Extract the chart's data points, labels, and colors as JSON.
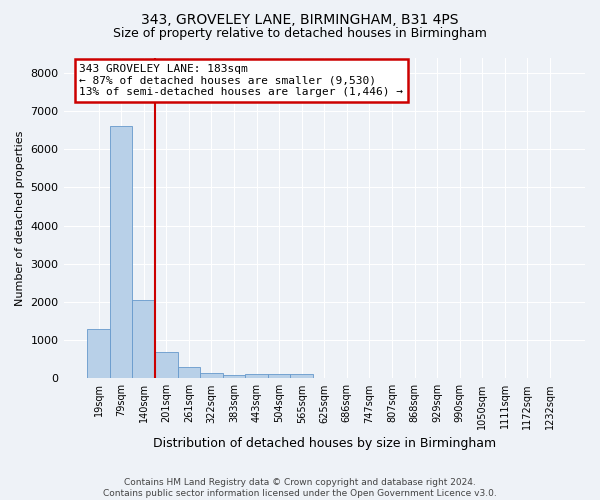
{
  "title": "343, GROVELEY LANE, BIRMINGHAM, B31 4PS",
  "subtitle": "Size of property relative to detached houses in Birmingham",
  "xlabel": "Distribution of detached houses by size in Birmingham",
  "ylabel": "Number of detached properties",
  "footer_line1": "Contains HM Land Registry data © Crown copyright and database right 2024.",
  "footer_line2": "Contains public sector information licensed under the Open Government Licence v3.0.",
  "bin_labels": [
    "19sqm",
    "79sqm",
    "140sqm",
    "201sqm",
    "261sqm",
    "322sqm",
    "383sqm",
    "443sqm",
    "504sqm",
    "565sqm",
    "625sqm",
    "686sqm",
    "747sqm",
    "807sqm",
    "868sqm",
    "929sqm",
    "990sqm",
    "1050sqm",
    "1111sqm",
    "1172sqm",
    "1232sqm"
  ],
  "bar_values": [
    1300,
    6600,
    2050,
    700,
    290,
    130,
    75,
    100,
    100,
    100,
    0,
    0,
    0,
    0,
    0,
    0,
    0,
    0,
    0,
    0,
    0
  ],
  "bar_color": "#b8d0e8",
  "bar_edge_color": "#6699cc",
  "background_color": "#eef2f7",
  "grid_color": "#ffffff",
  "red_line_bin": 2.5,
  "annotation_line1": "343 GROVELEY LANE: 183sqm",
  "annotation_line2": "← 87% of detached houses are smaller (9,530)",
  "annotation_line3": "13% of semi-detached houses are larger (1,446) →",
  "annotation_box_color": "#ffffff",
  "annotation_box_edge_color": "#cc0000",
  "ylim_max": 8400,
  "yticks": [
    0,
    1000,
    2000,
    3000,
    4000,
    5000,
    6000,
    7000,
    8000
  ]
}
